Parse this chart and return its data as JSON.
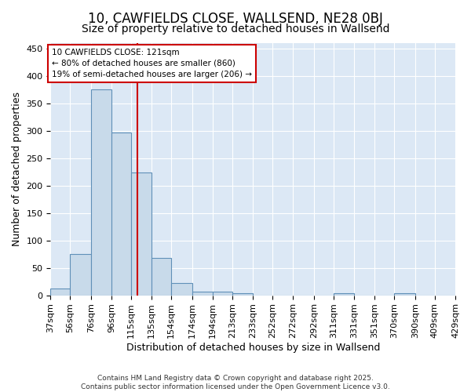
{
  "title": "10, CAWFIELDS CLOSE, WALLSEND, NE28 0BJ",
  "subtitle": "Size of property relative to detached houses in Wallsend",
  "xlabel": "Distribution of detached houses by size in Wallsend",
  "ylabel": "Number of detached properties",
  "bin_labels": [
    "37sqm",
    "56sqm",
    "76sqm",
    "96sqm",
    "115sqm",
    "135sqm",
    "154sqm",
    "174sqm",
    "194sqm",
    "213sqm",
    "233sqm",
    "252sqm",
    "272sqm",
    "292sqm",
    "311sqm",
    "331sqm",
    "351sqm",
    "370sqm",
    "390sqm",
    "409sqm",
    "429sqm"
  ],
  "bin_edges": [
    37,
    56,
    76,
    96,
    115,
    135,
    154,
    174,
    194,
    213,
    233,
    252,
    272,
    292,
    311,
    331,
    351,
    370,
    390,
    409,
    429
  ],
  "bar_heights": [
    13,
    75,
    375,
    297,
    224,
    68,
    22,
    7,
    6,
    4,
    0,
    0,
    0,
    0,
    4,
    0,
    0,
    3,
    0,
    0
  ],
  "bar_color": "#c8daea",
  "bar_edge_color": "#6090b8",
  "bg_color": "#dce8f5",
  "grid_color": "#ffffff",
  "red_line_x": 121,
  "ylim": [
    0,
    460
  ],
  "yticks": [
    0,
    50,
    100,
    150,
    200,
    250,
    300,
    350,
    400,
    450
  ],
  "annotation_box_text": "10 CAWFIELDS CLOSE: 121sqm\n← 80% of detached houses are smaller (860)\n19% of semi-detached houses are larger (206) →",
  "annotation_box_color": "#cc0000",
  "title_fontsize": 12,
  "subtitle_fontsize": 10,
  "tick_fontsize": 8,
  "ylabel_fontsize": 9,
  "xlabel_fontsize": 9,
  "footer_text": "Contains HM Land Registry data © Crown copyright and database right 2025.\nContains public sector information licensed under the Open Government Licence v3.0."
}
